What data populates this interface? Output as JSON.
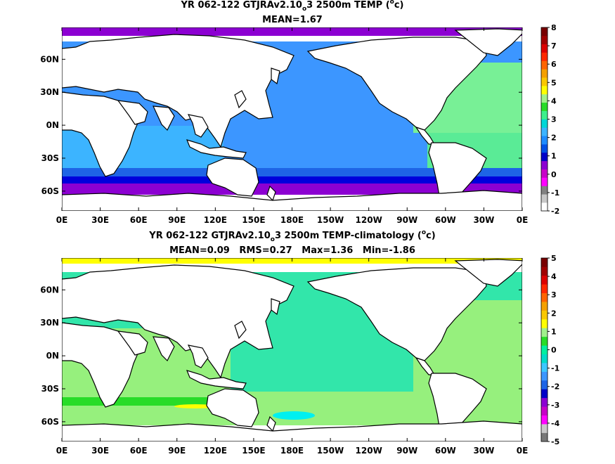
{
  "chart_data": [
    {
      "type": "heatmap",
      "title_pre": "YR 062-122 GTJRAv2.10",
      "title_sub": "o",
      "title_mid": "3 2500m TEMP (",
      "title_sup": "o",
      "title_post": "c)",
      "stats": "MEAN=1.67",
      "x_ticks": [
        "0E",
        "30E",
        "60E",
        "90E",
        "120E",
        "150E",
        "180E",
        "150W",
        "120W",
        "90W",
        "60W",
        "30W",
        "0E"
      ],
      "y_ticks": [
        "60N",
        "30N",
        "0N",
        "30S",
        "60S"
      ],
      "y_tick_lats": [
        60,
        30,
        0,
        -30,
        -60
      ],
      "lat_range": [
        -78,
        89
      ],
      "colorbar_labels": [
        "8",
        "7",
        "6",
        "5",
        "4",
        "3",
        "2",
        "1",
        "0",
        "-1",
        "-2"
      ],
      "colorbar_colors": [
        "#ffffff",
        "#c8c8c8",
        "#828282",
        "#ff00ff",
        "#c800c8",
        "#8c00d2",
        "#0000c8",
        "#0050e6",
        "#1e8cff",
        "#3cb4ff",
        "#00d7d7",
        "#3cf08c",
        "#28dc28",
        "#a0f08c",
        "#ffff00",
        "#fac800",
        "#f5a000",
        "#ff6400",
        "#ff2800",
        "#dc0000",
        "#a00000",
        "#780000"
      ],
      "regions": {
        "pacific_main": "#3c96ff",
        "southern_ring_1": "#1e64e6",
        "southern_ring_2": "#0000dc",
        "southern_ring_3": "#8c00d2",
        "indian": "#3cb4ff",
        "atlantic_south": "#5aeb96",
        "atlantic_north": "#78f096",
        "arctic": "#8c00d2"
      }
    },
    {
      "type": "heatmap",
      "title_pre": "YR 062-122 GTJRAv2.10",
      "title_sub": "o",
      "title_mid": "3 2500m TEMP-climatology (",
      "title_sup": "o",
      "title_post": "c)",
      "stats": "MEAN=0.09   RMS=0.27   Max=1.36   Min=-1.86",
      "x_ticks": [
        "0E",
        "30E",
        "60E",
        "90E",
        "120E",
        "150E",
        "180E",
        "150W",
        "120W",
        "90W",
        "60W",
        "30W",
        "0E"
      ],
      "y_ticks": [
        "60N",
        "30N",
        "0N",
        "30S",
        "60S"
      ],
      "y_tick_lats": [
        60,
        30,
        0,
        -30,
        -60
      ],
      "lat_range": [
        -78,
        89
      ],
      "colorbar_labels": [
        "5",
        "4",
        "3",
        "2",
        "1",
        "0",
        "-1",
        "-2",
        "-3",
        "-4",
        "-5"
      ],
      "colorbar_colors": [
        "#787878",
        "#c8c8c8",
        "#ff00ff",
        "#c800c8",
        "#8c00d2",
        "#0000c8",
        "#1e64e6",
        "#3c96ff",
        "#3cc8ff",
        "#00dcc8",
        "#00f0a0",
        "#28dc28",
        "#a0f08c",
        "#ffff00",
        "#fac800",
        "#f5a000",
        "#ff6400",
        "#ff2800",
        "#dc0000",
        "#a00000",
        "#780000"
      ],
      "regions": {
        "ocean_main": "#32e6aa",
        "southern_band": "#96f07d",
        "southern_strong": "#28dc28",
        "warm_patch": "#ffff00",
        "cool_patch": "#00f0f0",
        "arctic": "#ffff00"
      }
    }
  ]
}
